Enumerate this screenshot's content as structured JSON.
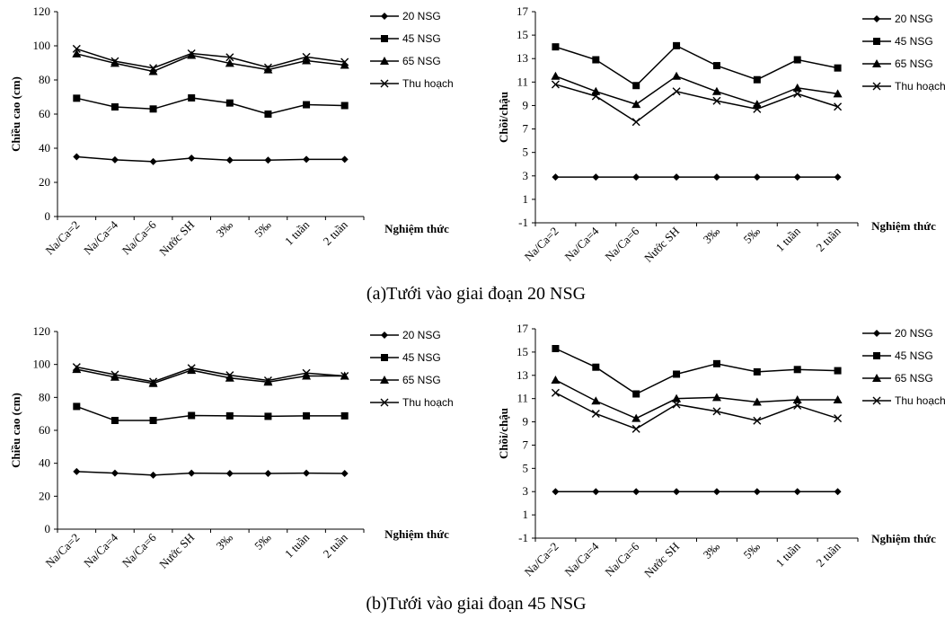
{
  "captions": [
    "(a)Tưới vào giai đoạn 20 NSG",
    "(b)Tưới vào giai đoạn 45 NSG"
  ],
  "chart_data": [
    {
      "type": "line",
      "ylabel": "Chiều cao (cm)",
      "xlabel": "Nghiệm thức",
      "categories": [
        "Na/Ca=2",
        "Na/Ca=4",
        "Na/Ca=6",
        "Nước SH",
        "3‰",
        "5‰",
        "1 tuần",
        "2 tuần"
      ],
      "ylim": [
        0,
        120
      ],
      "yticks": [
        0,
        20,
        40,
        60,
        80,
        100,
        120
      ],
      "series": [
        {
          "name": "20 NSG",
          "marker": "diamond",
          "values": [
            35,
            33.2,
            32.2,
            34.2,
            33,
            33,
            33.5,
            33.5
          ]
        },
        {
          "name": "45 NSG",
          "marker": "square",
          "values": [
            69.3,
            64.2,
            63,
            69.5,
            66.5,
            60,
            65.5,
            65
          ]
        },
        {
          "name": "65 NSG",
          "marker": "triangle",
          "values": [
            95.3,
            89.8,
            85,
            94.5,
            89.8,
            86,
            91.3,
            88.7
          ]
        },
        {
          "name": "Thu hoạch",
          "marker": "x",
          "values": [
            98.2,
            91,
            87,
            95.5,
            93.3,
            87.3,
            93.5,
            90.5
          ]
        }
      ]
    },
    {
      "type": "line",
      "ylabel": "Chồi/chậu",
      "xlabel": "Nghiệm thức",
      "categories": [
        "Na/Ca=2",
        "Na/Ca=4",
        "Na/Ca=6",
        "Nước SH",
        "3‰",
        "5‰",
        "1 tuần",
        "2 tuần"
      ],
      "ylim": [
        -1,
        17
      ],
      "yticks": [
        -1,
        1,
        3,
        5,
        7,
        9,
        11,
        13,
        15,
        17
      ],
      "series": [
        {
          "name": "20 NSG",
          "marker": "diamond",
          "values": [
            2.9,
            2.9,
            2.9,
            2.9,
            2.9,
            2.9,
            2.9,
            2.9
          ]
        },
        {
          "name": "45 NSG",
          "marker": "square",
          "values": [
            14,
            12.9,
            10.7,
            14.1,
            12.4,
            11.2,
            12.9,
            12.2
          ]
        },
        {
          "name": "65 NSG",
          "marker": "triangle",
          "values": [
            11.5,
            10.2,
            9.1,
            11.5,
            10.2,
            9.1,
            10.5,
            10
          ]
        },
        {
          "name": "Thu hoạch",
          "marker": "x",
          "values": [
            10.8,
            9.8,
            7.6,
            10.2,
            9.4,
            8.7,
            10,
            8.9
          ]
        }
      ]
    },
    {
      "type": "line",
      "ylabel": "Chiều cao (cm)",
      "xlabel": "Nghiệm thức",
      "categories": [
        "Na/Ca=2",
        "Na/Ca=4",
        "Na/Ca=6",
        "Nước SH",
        "3‰",
        "5‰",
        "1 tuần",
        "2 tuần"
      ],
      "ylim": [
        0,
        120
      ],
      "yticks": [
        0,
        20,
        40,
        60,
        80,
        100,
        120
      ],
      "series": [
        {
          "name": "20 NSG",
          "marker": "diamond",
          "values": [
            35,
            34,
            32.8,
            34,
            33.8,
            33.8,
            34,
            33.8
          ]
        },
        {
          "name": "45 NSG",
          "marker": "square",
          "values": [
            74.5,
            66,
            66,
            69,
            68.8,
            68.5,
            68.8,
            68.8
          ]
        },
        {
          "name": "65 NSG",
          "marker": "triangle",
          "values": [
            97,
            92.3,
            88.5,
            96.5,
            91.8,
            89.3,
            93,
            93
          ]
        },
        {
          "name": "Thu hoạch",
          "marker": "x",
          "values": [
            98.4,
            93.8,
            89.5,
            97.8,
            93.5,
            90.3,
            94.8,
            93
          ]
        }
      ]
    },
    {
      "type": "line",
      "ylabel": "Chồi/chậu",
      "xlabel": "Nghiệm thức",
      "categories": [
        "Na/Ca=2",
        "Na/Ca=4",
        "Na/Ca=6",
        "Nước SH",
        "3‰",
        "5‰",
        "1 tuần",
        "2 tuần"
      ],
      "ylim": [
        -1,
        17
      ],
      "yticks": [
        -1,
        1,
        3,
        5,
        7,
        9,
        11,
        13,
        15,
        17
      ],
      "series": [
        {
          "name": "20 NSG",
          "marker": "diamond",
          "values": [
            3,
            3,
            3,
            3,
            3,
            3,
            3,
            3
          ]
        },
        {
          "name": "45 NSG",
          "marker": "square",
          "values": [
            15.3,
            13.7,
            11.4,
            13.1,
            14,
            13.3,
            13.5,
            13.4
          ]
        },
        {
          "name": "65 NSG",
          "marker": "triangle",
          "values": [
            12.6,
            10.8,
            9.3,
            11,
            11.1,
            10.7,
            10.9,
            10.9
          ]
        },
        {
          "name": "Thu hoạch",
          "marker": "x",
          "values": [
            11.5,
            9.7,
            8.4,
            10.5,
            9.9,
            9.1,
            10.4,
            9.3
          ]
        }
      ]
    }
  ]
}
